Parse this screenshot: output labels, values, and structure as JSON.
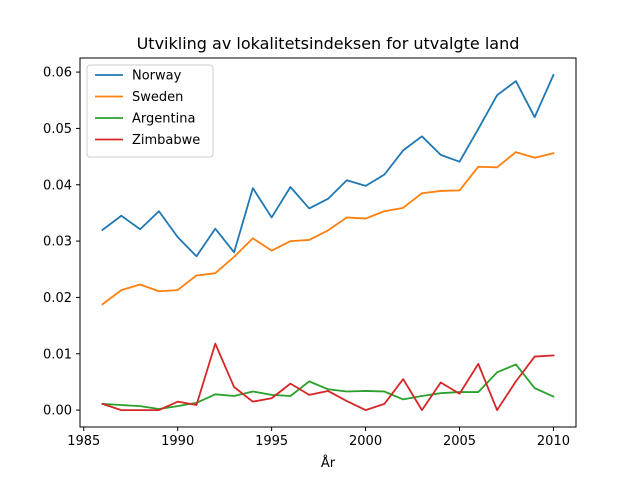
{
  "chart_data": {
    "type": "line",
    "title": "Utvikling av lokalitetsindeksen for utvalgte land",
    "xlabel": "År",
    "ylabel": "",
    "xlim": [
      1984.8,
      2011.2
    ],
    "ylim": [
      -0.003,
      0.0625
    ],
    "x_ticks": [
      1985,
      1990,
      1995,
      2000,
      2005,
      2010
    ],
    "y_ticks": [
      0.0,
      0.01,
      0.02,
      0.03,
      0.04,
      0.05,
      0.06
    ],
    "x_tick_labels": [
      "1985",
      "1990",
      "1995",
      "2000",
      "2005",
      "2010"
    ],
    "y_tick_labels": [
      "0.00",
      "0.01",
      "0.02",
      "0.03",
      "0.04",
      "0.05",
      "0.06"
    ],
    "grid": false,
    "legend_position": "top-left",
    "x": [
      1986,
      1987,
      1988,
      1989,
      1990,
      1991,
      1992,
      1993,
      1994,
      1995,
      1996,
      1997,
      1998,
      1999,
      2000,
      2001,
      2002,
      2003,
      2004,
      2005,
      2006,
      2007,
      2008,
      2009,
      2010
    ],
    "series": [
      {
        "name": "Norway",
        "color": "#1f77b4",
        "values": [
          0.032,
          0.0345,
          0.0321,
          0.0353,
          0.0307,
          0.0273,
          0.0322,
          0.028,
          0.0394,
          0.0342,
          0.0396,
          0.0358,
          0.0375,
          0.0408,
          0.0398,
          0.0418,
          0.0461,
          0.0486,
          0.0453,
          0.0441,
          0.0499,
          0.0559,
          0.0584,
          0.052,
          0.0595
        ]
      },
      {
        "name": "Sweden",
        "color": "#ff7f0e",
        "values": [
          0.0188,
          0.0213,
          0.0223,
          0.0211,
          0.0213,
          0.0239,
          0.0243,
          0.0272,
          0.0305,
          0.0283,
          0.03,
          0.0302,
          0.0319,
          0.0342,
          0.034,
          0.0353,
          0.0359,
          0.0385,
          0.0389,
          0.039,
          0.0432,
          0.0431,
          0.0458,
          0.0448,
          0.0456
        ]
      },
      {
        "name": "Argentina",
        "color": "#2ca02c",
        "values": [
          0.0011,
          0.0009,
          0.0007,
          0.0002,
          0.0007,
          0.0013,
          0.0028,
          0.0025,
          0.0033,
          0.0027,
          0.0025,
          0.0051,
          0.0037,
          0.0033,
          0.0034,
          0.0033,
          0.0019,
          0.0025,
          0.003,
          0.0032,
          0.0032,
          0.0067,
          0.0081,
          0.0039,
          0.0024
        ]
      },
      {
        "name": "Zimbabwe",
        "color": "#d62728",
        "values": [
          0.0011,
          0.0,
          0.0,
          0.0,
          0.0015,
          0.0009,
          0.0118,
          0.0041,
          0.0015,
          0.0021,
          0.0047,
          0.0027,
          0.0034,
          0.0016,
          0.0,
          0.0011,
          0.0055,
          0.0,
          0.0049,
          0.0029,
          0.0082,
          0.0,
          0.0051,
          0.0095,
          0.0097
        ]
      }
    ]
  }
}
